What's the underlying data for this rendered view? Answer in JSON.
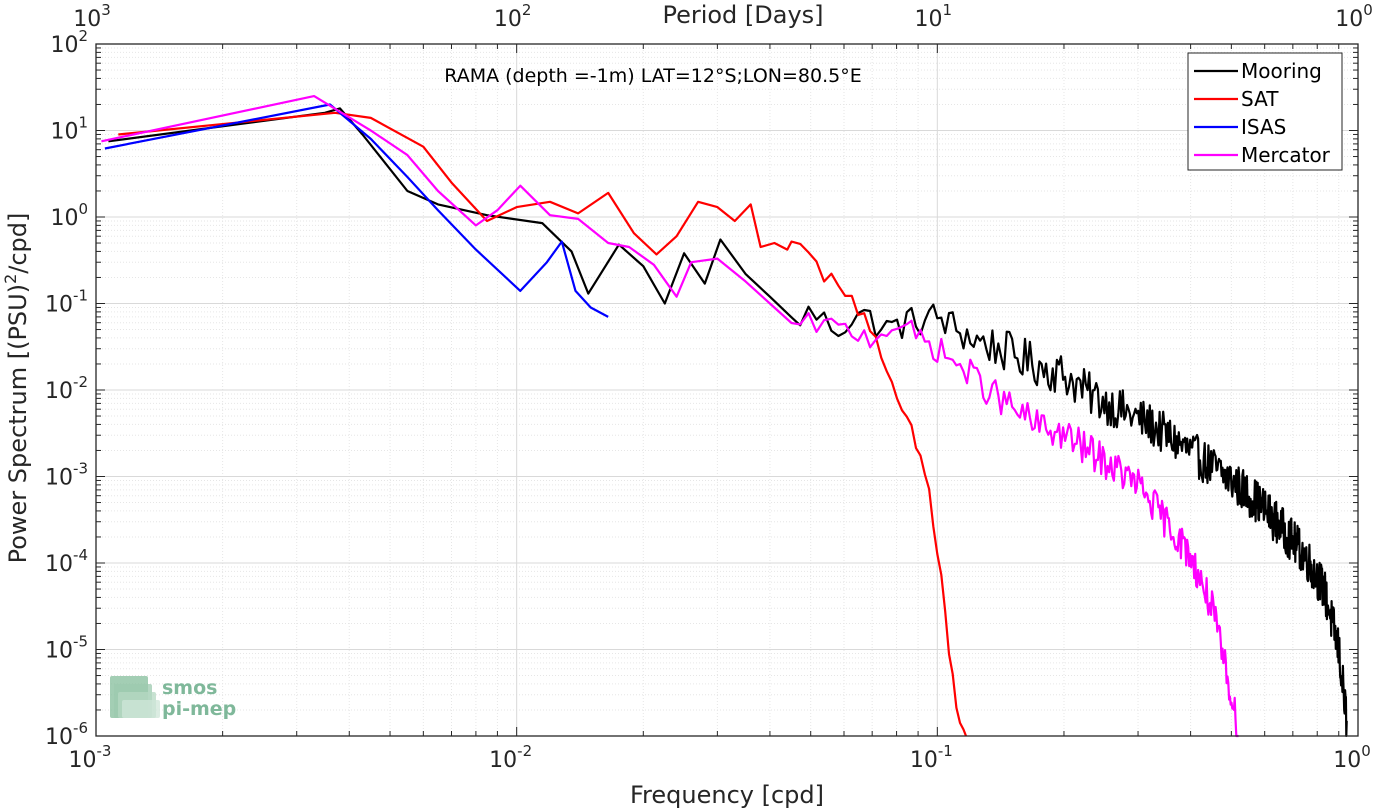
{
  "chart_data": {
    "type": "line",
    "xlabel": "Frequency [cpd]",
    "ylabel_prefix": "Power Spectrum [(PSU)",
    "ylabel_sup": "2",
    "ylabel_suffix": "/cpd]",
    "top_axis_label": "Period [Days]",
    "annotation": "RAMA (depth =-1m) LAT=12°S;LON=80.5°E",
    "x_scale": "log",
    "y_scale": "log",
    "xlim": [
      0.001,
      1
    ],
    "ylim": [
      1e-06,
      100
    ],
    "grid": true,
    "legend_position": "top-right",
    "x_ticks": [
      0.001,
      0.01,
      0.1,
      1
    ],
    "x_tick_labels": [
      {
        "base": "10",
        "exp": "-3"
      },
      {
        "base": "10",
        "exp": "-2"
      },
      {
        "base": "10",
        "exp": "-1"
      },
      {
        "base": "10",
        "exp": "0"
      }
    ],
    "top_tick_labels": [
      {
        "base": "10",
        "exp": "3"
      },
      {
        "base": "10",
        "exp": "2"
      },
      {
        "base": "10",
        "exp": "1"
      },
      {
        "base": "10",
        "exp": "0"
      }
    ],
    "y_ticks": [
      1e-06,
      1e-05,
      0.0001,
      0.001,
      0.01,
      0.1,
      1,
      10,
      100
    ],
    "y_tick_labels": [
      {
        "base": "10",
        "exp": "-6"
      },
      {
        "base": "10",
        "exp": "-5"
      },
      {
        "base": "10",
        "exp": "-4"
      },
      {
        "base": "10",
        "exp": "-3"
      },
      {
        "base": "10",
        "exp": "-2"
      },
      {
        "base": "10",
        "exp": "-1"
      },
      {
        "base": "10",
        "exp": "0"
      },
      {
        "base": "10",
        "exp": "1"
      },
      {
        "base": "10",
        "exp": "2"
      }
    ],
    "series": [
      {
        "name": "Mooring",
        "color": "#000000",
        "anchors": [
          [
            0.00107,
            7.5
          ],
          [
            0.0035,
            16
          ],
          [
            0.0038,
            18
          ],
          [
            0.0043,
            9
          ],
          [
            0.0055,
            2
          ],
          [
            0.0065,
            1.4
          ],
          [
            0.0085,
            1.05
          ],
          [
            0.0115,
            0.85
          ],
          [
            0.0135,
            0.4
          ],
          [
            0.0148,
            0.13
          ],
          [
            0.0175,
            0.48
          ],
          [
            0.02,
            0.27
          ],
          [
            0.0225,
            0.1
          ],
          [
            0.025,
            0.38
          ],
          [
            0.028,
            0.17
          ],
          [
            0.0305,
            0.55
          ],
          [
            0.035,
            0.22
          ],
          [
            0.04,
            0.12
          ],
          [
            0.045,
            0.06
          ],
          [
            0.05,
            0.08
          ],
          [
            0.058,
            0.05
          ],
          [
            0.065,
            0.08
          ],
          [
            0.075,
            0.05
          ],
          [
            0.085,
            0.06
          ],
          [
            0.1,
            0.07
          ],
          [
            0.12,
            0.04
          ],
          [
            0.14,
            0.03
          ],
          [
            0.17,
            0.02
          ],
          [
            0.2,
            0.015
          ],
          [
            0.23,
            0.009
          ],
          [
            0.27,
            0.006
          ],
          [
            0.32,
            0.004
          ],
          [
            0.37,
            0.0025
          ],
          [
            0.43,
            0.0015
          ],
          [
            0.5,
            0.0009
          ],
          [
            0.58,
            0.0005
          ],
          [
            0.66,
            0.00025
          ],
          [
            0.75,
            0.00012
          ],
          [
            0.83,
            5e-05
          ],
          [
            0.9,
            1e-05
          ],
          [
            0.94,
            1.5e-06
          ]
        ],
        "noise": 0.5,
        "noise_from": 0.045
      },
      {
        "name": "SAT",
        "color": "#ff0000",
        "anchors": [
          [
            0.00113,
            9
          ],
          [
            0.0037,
            16
          ],
          [
            0.0045,
            14
          ],
          [
            0.006,
            6.5
          ],
          [
            0.007,
            2.5
          ],
          [
            0.0085,
            0.9
          ],
          [
            0.01,
            1.3
          ],
          [
            0.012,
            1.5
          ],
          [
            0.014,
            1.1
          ],
          [
            0.0165,
            1.9
          ],
          [
            0.019,
            0.65
          ],
          [
            0.0215,
            0.37
          ],
          [
            0.024,
            0.6
          ],
          [
            0.027,
            1.5
          ],
          [
            0.03,
            1.3
          ],
          [
            0.033,
            0.9
          ],
          [
            0.036,
            1.4
          ],
          [
            0.038,
            0.45
          ],
          [
            0.041,
            0.5
          ],
          [
            0.044,
            0.42
          ],
          [
            0.048,
            0.65
          ],
          [
            0.053,
            0.18
          ],
          [
            0.058,
            0.2
          ],
          [
            0.064,
            0.1
          ],
          [
            0.07,
            0.05
          ],
          [
            0.075,
            0.015
          ],
          [
            0.08,
            0.008
          ],
          [
            0.085,
            0.004
          ],
          [
            0.09,
            0.002
          ],
          [
            0.095,
            0.0008
          ],
          [
            0.099,
            0.0002
          ],
          [
            0.103,
            5e-05
          ],
          [
            0.107,
            8e-06
          ],
          [
            0.112,
            1.6e-06
          ],
          [
            0.117,
            1e-06
          ]
        ],
        "noise": 0.3,
        "noise_from": 0.045
      },
      {
        "name": "ISAS",
        "color": "#0000ff",
        "anchors": [
          [
            0.00105,
            6.2
          ],
          [
            0.0036,
            20
          ],
          [
            0.0045,
            8
          ],
          [
            0.0055,
            2.9
          ],
          [
            0.0065,
            1.2
          ],
          [
            0.008,
            0.42
          ],
          [
            0.0102,
            0.14
          ],
          [
            0.0118,
            0.3
          ],
          [
            0.0128,
            0.52
          ],
          [
            0.0138,
            0.14
          ],
          [
            0.015,
            0.09
          ],
          [
            0.0165,
            0.07
          ]
        ],
        "noise": 0,
        "noise_from": 1
      },
      {
        "name": "Mercator",
        "color": "#ff00ff",
        "anchors": [
          [
            0.00103,
            7.5
          ],
          [
            0.0033,
            25
          ],
          [
            0.0045,
            10
          ],
          [
            0.0055,
            5.2
          ],
          [
            0.0065,
            2
          ],
          [
            0.008,
            0.8
          ],
          [
            0.009,
            1.2
          ],
          [
            0.0102,
            2.3
          ],
          [
            0.012,
            1.05
          ],
          [
            0.014,
            0.95
          ],
          [
            0.0165,
            0.5
          ],
          [
            0.0185,
            0.45
          ],
          [
            0.0212,
            0.28
          ],
          [
            0.024,
            0.12
          ],
          [
            0.026,
            0.3
          ],
          [
            0.03,
            0.33
          ],
          [
            0.035,
            0.18
          ],
          [
            0.04,
            0.1
          ],
          [
            0.045,
            0.05
          ],
          [
            0.05,
            0.06
          ],
          [
            0.06,
            0.05
          ],
          [
            0.07,
            0.04
          ],
          [
            0.08,
            0.06
          ],
          [
            0.09,
            0.04
          ],
          [
            0.1,
            0.03
          ],
          [
            0.12,
            0.015
          ],
          [
            0.14,
            0.008
          ],
          [
            0.17,
            0.004
          ],
          [
            0.2,
            0.003
          ],
          [
            0.25,
            0.0015
          ],
          [
            0.3,
            0.0008
          ],
          [
            0.35,
            0.0003
          ],
          [
            0.4,
            0.00012
          ],
          [
            0.45,
            3e-05
          ],
          [
            0.5,
            3e-06
          ],
          [
            0.52,
            1e-06
          ]
        ],
        "noise": 0.4,
        "noise_from": 0.045
      }
    ]
  },
  "logo": {
    "line1": "smos",
    "line2": "pi-mep"
  }
}
